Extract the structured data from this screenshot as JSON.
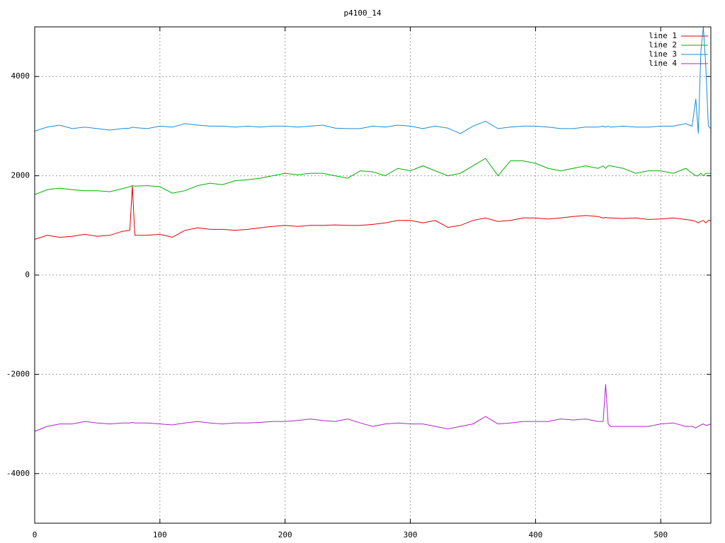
{
  "chart_data": {
    "type": "line",
    "title": "p4100_14",
    "x": [
      0,
      10,
      20,
      30,
      40,
      50,
      60,
      70,
      76,
      78,
      80,
      90,
      100,
      110,
      120,
      130,
      140,
      150,
      160,
      170,
      180,
      190,
      200,
      210,
      220,
      230,
      240,
      250,
      260,
      270,
      280,
      290,
      300,
      310,
      320,
      330,
      340,
      350,
      360,
      370,
      380,
      390,
      400,
      410,
      420,
      430,
      440,
      450,
      454,
      456,
      458,
      460,
      470,
      480,
      490,
      500,
      510,
      520,
      525,
      528,
      530,
      532,
      534,
      536,
      538,
      540
    ],
    "series": [
      {
        "name": "line 1",
        "color": "#e00000",
        "values": [
          720,
          800,
          760,
          780,
          820,
          780,
          800,
          880,
          900,
          1800,
          800,
          800,
          820,
          760,
          900,
          950,
          920,
          920,
          900,
          920,
          950,
          980,
          1000,
          980,
          1000,
          1000,
          1010,
          1000,
          1000,
          1020,
          1050,
          1100,
          1100,
          1050,
          1100,
          960,
          1000,
          1100,
          1150,
          1080,
          1100,
          1150,
          1150,
          1130,
          1150,
          1180,
          1200,
          1180,
          1150,
          1160,
          1150,
          1150,
          1140,
          1150,
          1120,
          1130,
          1150,
          1120,
          1100,
          1080,
          1050,
          1080,
          1100,
          1050,
          1100,
          1100
        ]
      },
      {
        "name": "line 2",
        "color": "#00b000",
        "values": [
          1620,
          1720,
          1750,
          1720,
          1700,
          1700,
          1680,
          1740,
          1780,
          1800,
          1790,
          1800,
          1780,
          1650,
          1700,
          1800,
          1850,
          1820,
          1900,
          1920,
          1950,
          2000,
          2050,
          2020,
          2050,
          2050,
          2000,
          1950,
          2100,
          2080,
          2000,
          2150,
          2100,
          2200,
          2100,
          2000,
          2050,
          2200,
          2350,
          2000,
          2300,
          2300,
          2250,
          2150,
          2100,
          2150,
          2200,
          2150,
          2200,
          2150,
          2200,
          2200,
          2150,
          2050,
          2100,
          2100,
          2050,
          2150,
          2050,
          2000,
          2000,
          2050,
          2000,
          2050,
          2050,
          2050
        ]
      },
      {
        "name": "line 3",
        "color": "#1a8ad4",
        "values": [
          2900,
          2980,
          3020,
          2950,
          2980,
          2950,
          2920,
          2950,
          2960,
          2980,
          2970,
          2950,
          3000,
          2980,
          3050,
          3020,
          3000,
          3000,
          2980,
          3000,
          2980,
          3000,
          3000,
          2980,
          3000,
          3020,
          2960,
          2950,
          2950,
          3000,
          2980,
          3020,
          3000,
          2950,
          3000,
          2960,
          2850,
          3000,
          3100,
          2950,
          2980,
          3000,
          3000,
          2980,
          2950,
          2950,
          2980,
          2980,
          3000,
          2980,
          3000,
          2980,
          3000,
          2980,
          2980,
          3000,
          3000,
          3050,
          3000,
          3550,
          2850,
          4500,
          5000,
          4200,
          3000,
          2950
        ]
      },
      {
        "name": "line 4",
        "color": "#b020d0",
        "values": [
          -3150,
          -3050,
          -3000,
          -3000,
          -2950,
          -2980,
          -3000,
          -2980,
          -2980,
          -2970,
          -2980,
          -2980,
          -3000,
          -3020,
          -2980,
          -2950,
          -2980,
          -3000,
          -2980,
          -2980,
          -2970,
          -2950,
          -2950,
          -2930,
          -2900,
          -2930,
          -2950,
          -2900,
          -2980,
          -3050,
          -3000,
          -2980,
          -3000,
          -3000,
          -3050,
          -3100,
          -3050,
          -3000,
          -2850,
          -3000,
          -2980,
          -2950,
          -2950,
          -2950,
          -2900,
          -2920,
          -2900,
          -2950,
          -2950,
          -2200,
          -3000,
          -3050,
          -3050,
          -3050,
          -3050,
          -3000,
          -2980,
          -3050,
          -3050,
          -3080,
          -3050,
          -3020,
          -3000,
          -3030,
          -3020,
          -3000
        ]
      }
    ],
    "xlim": [
      0,
      540
    ],
    "xticks": [
      0,
      100,
      200,
      300,
      400,
      500
    ],
    "ylim": [
      -5000,
      5000
    ],
    "yticks": [
      -4000,
      -2000,
      0,
      2000,
      4000
    ],
    "grid": true,
    "legend": "top-right"
  }
}
